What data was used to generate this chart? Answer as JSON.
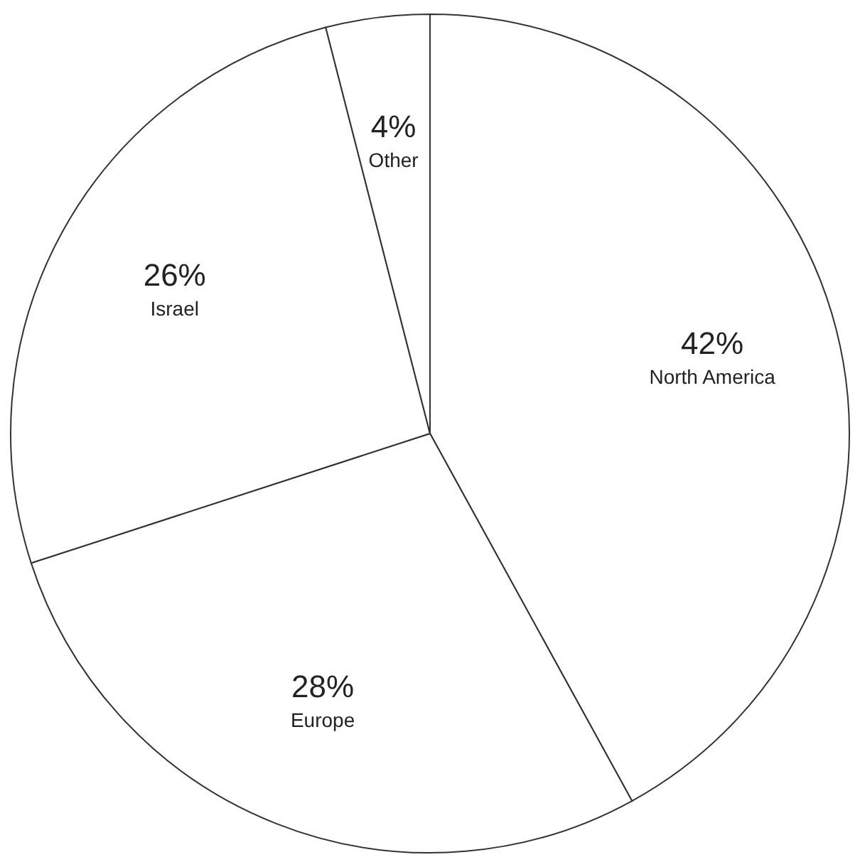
{
  "chart_data": {
    "type": "pie",
    "categories": [
      "North America",
      "Europe",
      "Israel",
      "Other"
    ],
    "values": [
      42,
      28,
      26,
      4
    ],
    "value_labels": [
      "42%",
      "28%",
      "26%",
      "4%"
    ],
    "colors": [
      "#ffffff",
      "#ffffff",
      "#ffffff",
      "#ffffff"
    ],
    "legend": false
  }
}
